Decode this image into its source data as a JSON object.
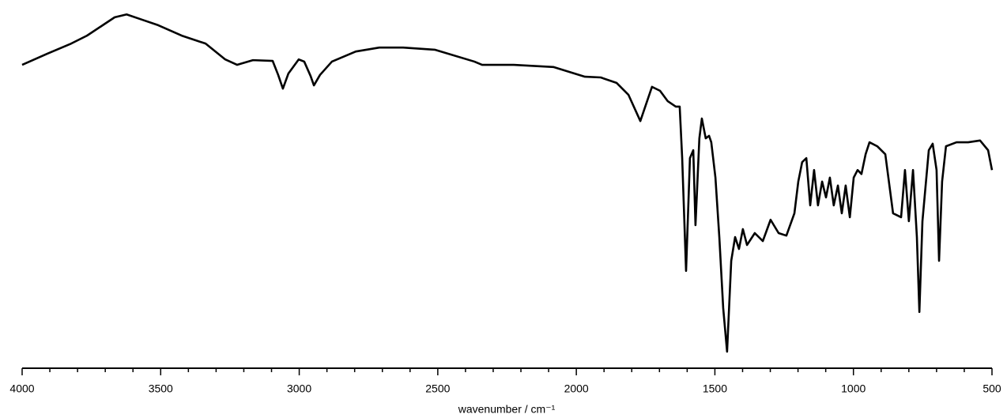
{
  "chart_data": {
    "type": "line",
    "x_label": "wavenumber / cm⁻¹",
    "xlim": [
      4000,
      500
    ],
    "xticks": [
      4000,
      3500,
      3000,
      2500,
      2000,
      1500,
      1000,
      500
    ],
    "xminorticks": [
      3900,
      3800,
      3700,
      3600,
      3400,
      3300,
      3200,
      3100,
      2900,
      2800,
      2700,
      2600,
      2400,
      2300,
      2200,
      2100,
      1900,
      1800,
      1700,
      1600,
      1400,
      1300,
      1200,
      1100,
      900,
      800,
      700,
      600
    ],
    "ylim": [
      0,
      100
    ],
    "series": [
      {
        "color": "#000000",
        "x": [
          4000,
          3909,
          3823,
          3766,
          3709,
          3666,
          3623,
          3566,
          3509,
          3424,
          3338,
          3267,
          3224,
          3167,
          3096,
          3076,
          3059,
          3039,
          3002,
          2982,
          2959,
          2947,
          2925,
          2882,
          2796,
          2711,
          2625,
          2511,
          2368,
          2340,
          2226,
          2083,
          1969,
          1912,
          1855,
          1812,
          1769,
          1727,
          1698,
          1670,
          1641,
          1627,
          1618,
          1604,
          1590,
          1578,
          1570,
          1556,
          1547,
          1533,
          1521,
          1513,
          1498,
          1484,
          1470,
          1456,
          1441,
          1427,
          1413,
          1399,
          1384,
          1356,
          1327,
          1299,
          1270,
          1242,
          1213,
          1199,
          1185,
          1170,
          1156,
          1142,
          1128,
          1113,
          1099,
          1085,
          1071,
          1056,
          1042,
          1028,
          1013,
          999,
          985,
          971,
          956,
          942,
          914,
          885,
          857,
          828,
          814,
          800,
          785,
          771,
          762,
          751,
          728,
          714,
          700,
          691,
          680,
          666,
          628,
          586,
          543,
          514,
          500
        ],
        "values": [
          84.2,
          87.3,
          90.1,
          92.3,
          95.2,
          97.4,
          98.2,
          96.7,
          95.2,
          92.3,
          90.1,
          85.7,
          84.2,
          85.5,
          85.3,
          81.4,
          77.6,
          81.8,
          85.7,
          85.1,
          81.1,
          78.5,
          81.4,
          85.1,
          87.9,
          89.0,
          89.0,
          88.4,
          85.1,
          84.2,
          84.2,
          83.6,
          80.9,
          80.7,
          79.2,
          75.9,
          68.6,
          78.1,
          77.0,
          74.1,
          72.6,
          72.6,
          58.3,
          27.0,
          58.3,
          60.5,
          39.7,
          63.8,
          69.3,
          63.8,
          64.5,
          62.7,
          52.9,
          36.4,
          16.7,
          4.6,
          29.8,
          36.4,
          33.1,
          38.6,
          34.2,
          37.5,
          35.3,
          41.2,
          37.5,
          36.8,
          43.0,
          51.8,
          57.2,
          58.3,
          45.2,
          55.0,
          45.2,
          51.8,
          47.4,
          52.9,
          45.2,
          50.7,
          43.0,
          50.7,
          41.9,
          52.9,
          55.0,
          53.9,
          59.4,
          62.7,
          61.6,
          59.4,
          43.0,
          41.9,
          55.0,
          40.8,
          55.0,
          36.4,
          15.6,
          40.8,
          60.5,
          62.3,
          55.0,
          29.8,
          51.8,
          61.6,
          62.7,
          62.7,
          63.2,
          60.5,
          55.0
        ]
      }
    ]
  }
}
